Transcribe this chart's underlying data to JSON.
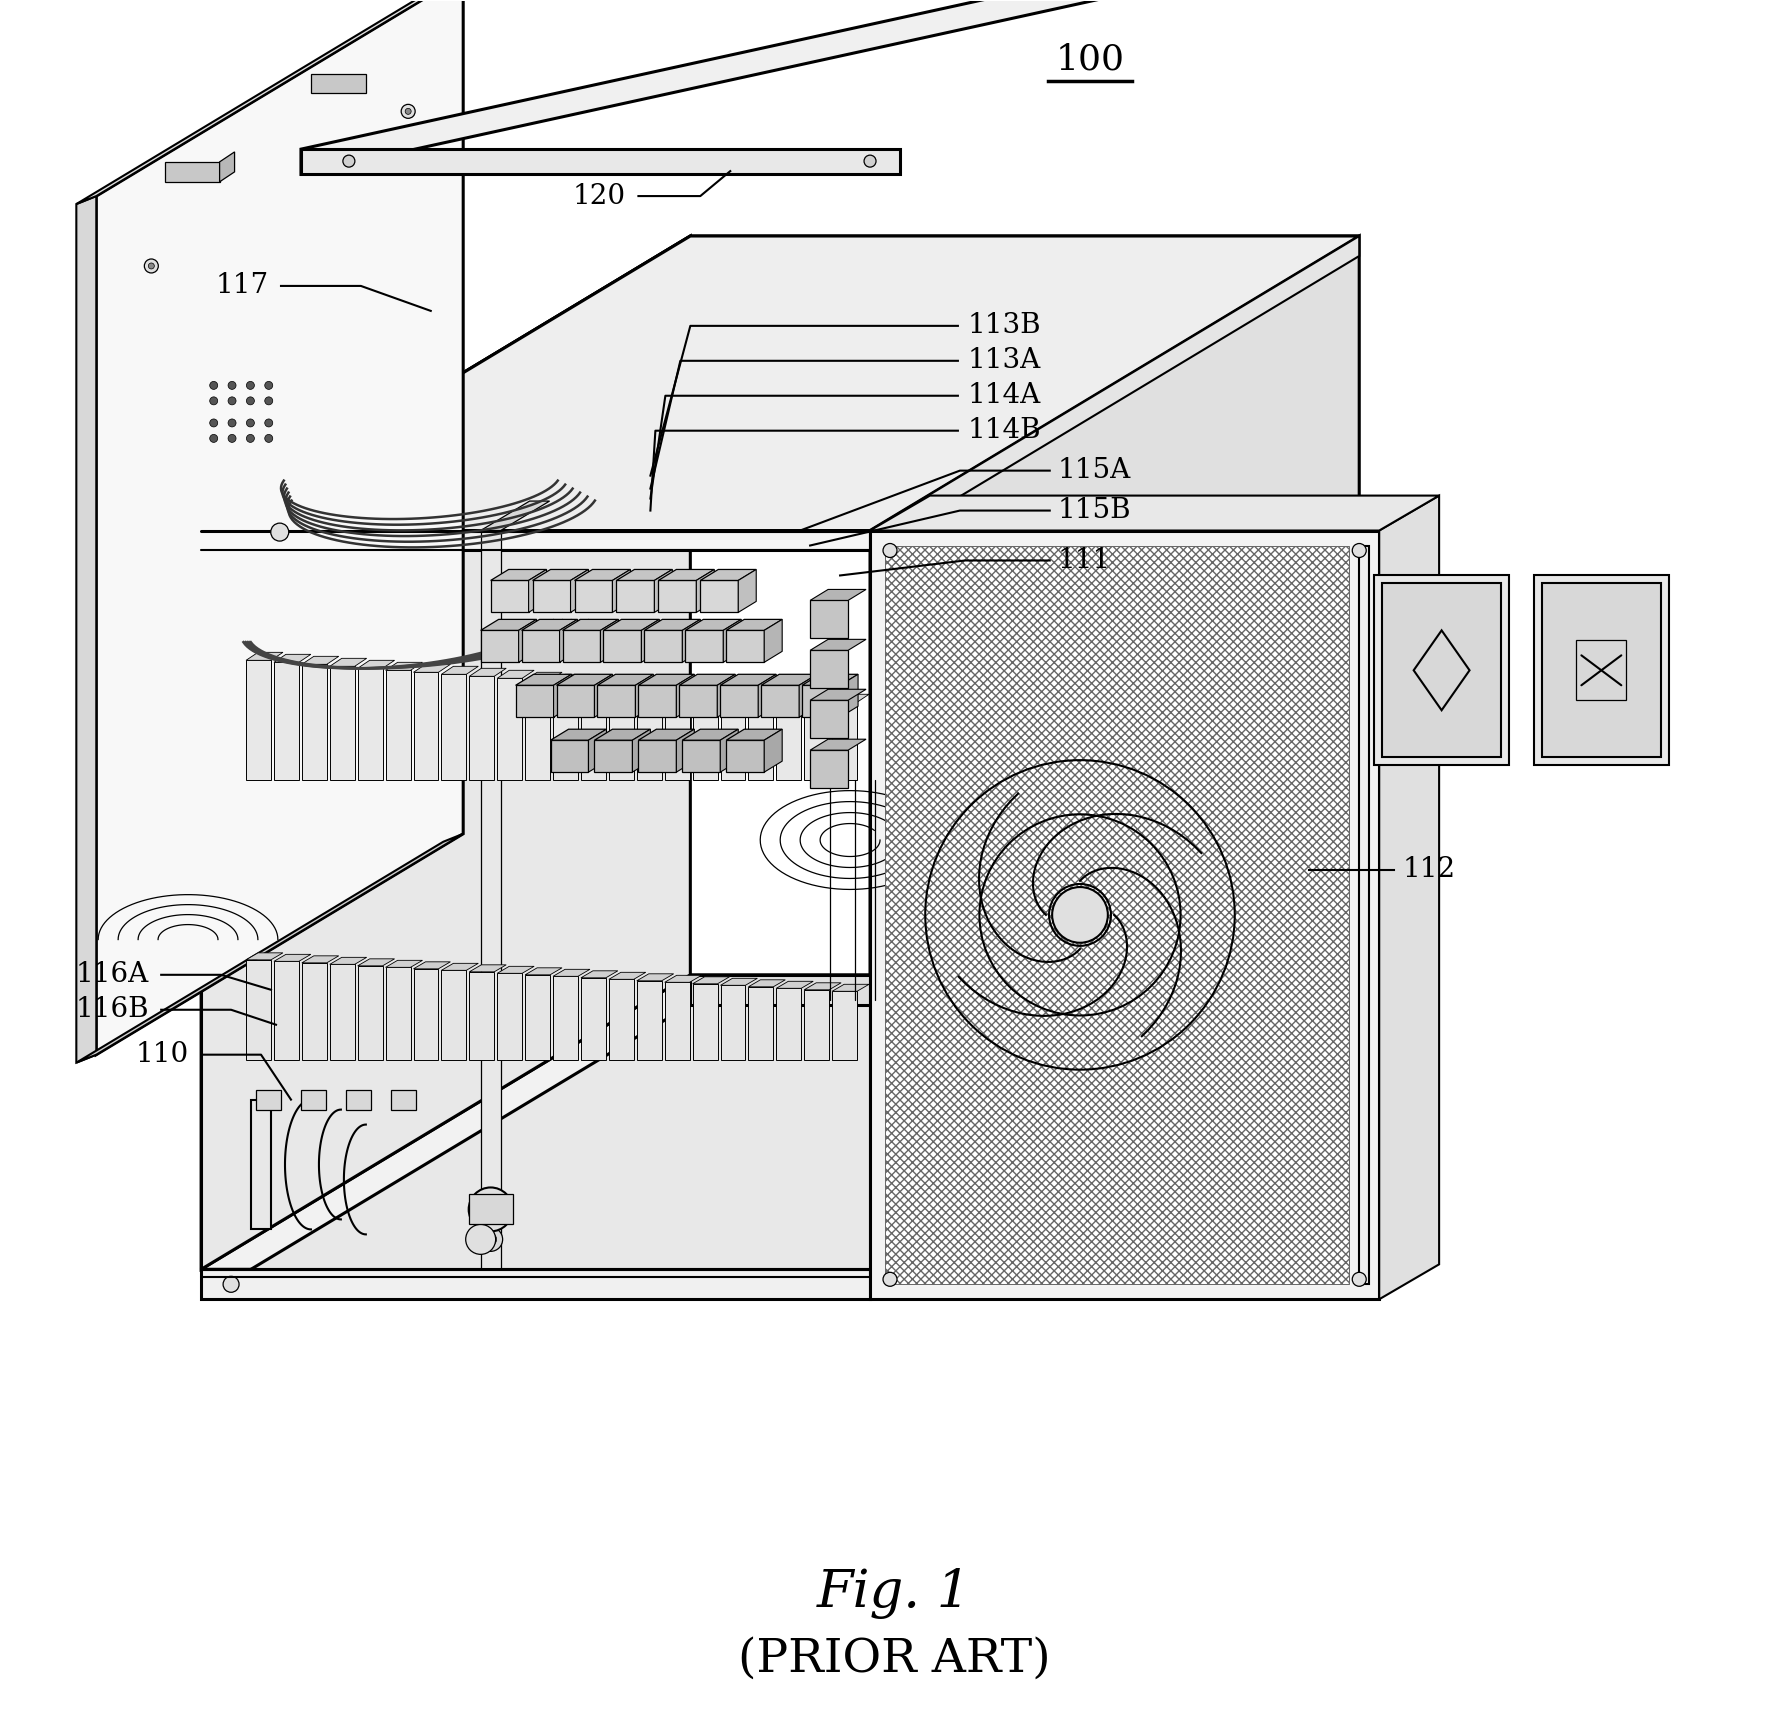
{
  "figsize": [
    17.89,
    17.13
  ],
  "dpi": 100,
  "bg_color": "#ffffff",
  "line_color": "#000000",
  "fig_label": "Fig. 1",
  "fig_sublabel": "(PRIOR ART)",
  "ref_100": "100",
  "label_fontsize": 20,
  "caption_fontsize": 38,
  "subcaption_fontsize": 34,
  "ref_fontsize": 26
}
